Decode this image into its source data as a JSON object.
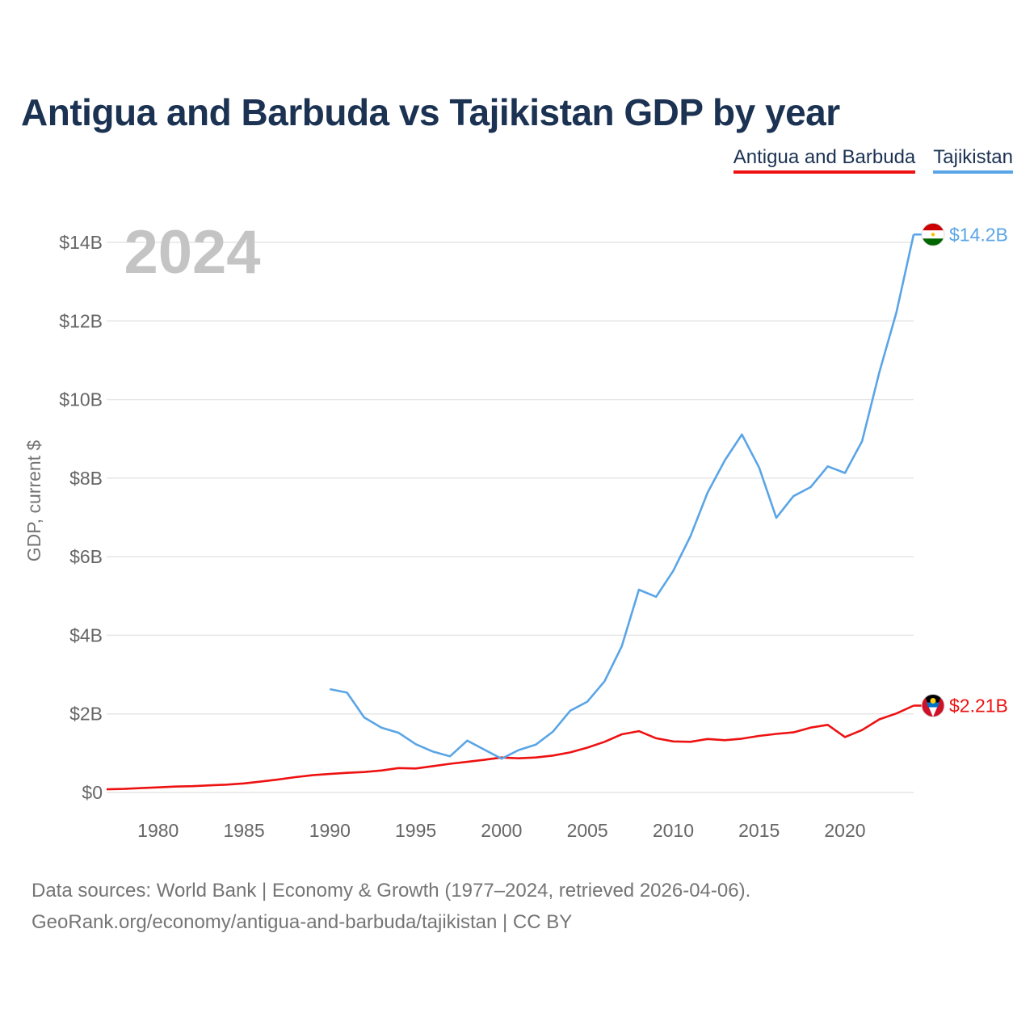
{
  "title": "Antigua and Barbuda vs Tajikistan GDP by year",
  "year_label": "2024",
  "legend": [
    "Antigua and Barbuda",
    "Tajikistan"
  ],
  "footer": {
    "line1": "Data sources: World Bank | Economy & Growth (1977–2024, retrieved 2026-04-06).",
    "line2": "GeoRank.org/economy/antigua-and-barbuda/tajikistan | CC BY"
  },
  "colors": {
    "antigua": "#ee1111",
    "tajikistan": "#5aa5e6",
    "title": "#1b3252",
    "axis_text": "#666666"
  },
  "chart_data": {
    "type": "line",
    "title": "Antigua and Barbuda vs Tajikistan GDP by year",
    "xlabel": "",
    "ylabel": "GDP, current $",
    "xlim": [
      1977,
      2024
    ],
    "ylim": [
      0,
      14
    ],
    "y_unit": "billion US$",
    "x_ticks": [
      1980,
      1985,
      1990,
      1995,
      2000,
      2005,
      2010,
      2015,
      2020
    ],
    "y_ticks": [
      0,
      2,
      4,
      6,
      8,
      10,
      12,
      14
    ],
    "y_tick_labels": [
      "$0",
      "$2B",
      "$4B",
      "$6B",
      "$8B",
      "$10B",
      "$12B",
      "$14B"
    ],
    "series": [
      {
        "name": "Antigua and Barbuda",
        "color": "#ee1111",
        "end_label": "$2.21B",
        "x": [
          1977,
          1978,
          1979,
          1980,
          1981,
          1982,
          1983,
          1984,
          1985,
          1986,
          1987,
          1988,
          1989,
          1990,
          1991,
          1992,
          1993,
          1994,
          1995,
          1996,
          1997,
          1998,
          1999,
          2000,
          2001,
          2002,
          2003,
          2004,
          2005,
          2006,
          2007,
          2008,
          2009,
          2010,
          2011,
          2012,
          2013,
          2014,
          2015,
          2016,
          2017,
          2018,
          2019,
          2020,
          2021,
          2022,
          2023,
          2024
        ],
        "values": [
          0.08,
          0.09,
          0.11,
          0.13,
          0.15,
          0.16,
          0.18,
          0.2,
          0.23,
          0.28,
          0.33,
          0.39,
          0.44,
          0.47,
          0.5,
          0.52,
          0.56,
          0.62,
          0.61,
          0.67,
          0.73,
          0.78,
          0.83,
          0.89,
          0.87,
          0.89,
          0.94,
          1.02,
          1.14,
          1.29,
          1.48,
          1.56,
          1.38,
          1.3,
          1.29,
          1.36,
          1.33,
          1.37,
          1.44,
          1.49,
          1.53,
          1.65,
          1.72,
          1.41,
          1.59,
          1.86,
          2.01,
          2.21
        ]
      },
      {
        "name": "Tajikistan",
        "color": "#5aa5e6",
        "end_label": "$14.2B",
        "x": [
          1990,
          1991,
          1992,
          1993,
          1994,
          1995,
          1996,
          1997,
          1998,
          1999,
          2000,
          2001,
          2002,
          2003,
          2004,
          2005,
          2006,
          2007,
          2008,
          2009,
          2010,
          2011,
          2012,
          2013,
          2014,
          2015,
          2016,
          2017,
          2018,
          2019,
          2020,
          2021,
          2022,
          2023,
          2024
        ],
        "values": [
          2.63,
          2.54,
          1.91,
          1.65,
          1.52,
          1.23,
          1.04,
          0.92,
          1.32,
          1.09,
          0.86,
          1.08,
          1.22,
          1.55,
          2.08,
          2.31,
          2.83,
          3.72,
          5.16,
          4.98,
          5.64,
          6.52,
          7.63,
          8.45,
          9.11,
          8.27,
          6.99,
          7.54,
          7.77,
          8.3,
          8.13,
          8.94,
          10.69,
          12.22,
          14.2
        ]
      }
    ]
  }
}
